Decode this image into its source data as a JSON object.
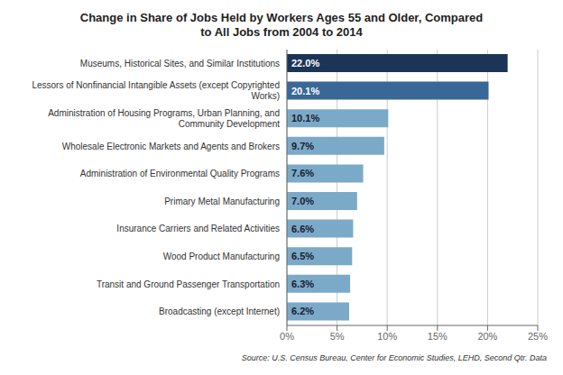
{
  "chart_data": {
    "type": "bar",
    "orientation": "horizontal",
    "title": "Change in Share of Jobs Held by Workers Ages 55 and Older, Compared\nto All Jobs from 2004 to 2014",
    "categories": [
      "Broadcasting (except Internet)",
      "Transit and Ground Passenger Transportation",
      "Wood Product Manufacturing",
      "Insurance Carriers and Related Activities",
      "Primary Metal Manufacturing",
      "Administration of Environmental Quality Programs",
      "Wholesale Electronic Markets and Agents and Brokers",
      "Administration of Housing Programs, Urban Planning, and\nCommunity Development",
      "Lessors of Nonfinancial Intangible Assets (except Copyrighted\nWorks)",
      "Museums, Historical Sites, and Similar Institutions"
    ],
    "values": [
      6.2,
      6.3,
      6.5,
      6.6,
      7.0,
      7.6,
      9.7,
      10.1,
      20.1,
      22.0
    ],
    "value_labels": [
      "6.2%",
      "6.3%",
      "6.5%",
      "6.6%",
      "7.0%",
      "7.6%",
      "9.7%",
      "10.1%",
      "20.1%",
      "22.0%"
    ],
    "data_labels": true,
    "colors": [
      "#7baac8",
      "#7baac8",
      "#7baac8",
      "#7baac8",
      "#7baac8",
      "#7baac8",
      "#7baac8",
      "#7baac8",
      "#3a6896",
      "#1c3557"
    ],
    "xlim": [
      0,
      25
    ],
    "xticks": [
      {
        "value": 0,
        "label": "0%"
      },
      {
        "value": 5,
        "label": "5%"
      },
      {
        "value": 10,
        "label": "10%"
      },
      {
        "value": 15,
        "label": "15%"
      },
      {
        "value": 20,
        "label": "20%"
      },
      {
        "value": 25,
        "label": "25%"
      }
    ],
    "grid": true,
    "annotations": [
      "Source: U.S. Census Bureau, Center for Economic Studies, LEHD, Second Qtr. Data"
    ]
  }
}
